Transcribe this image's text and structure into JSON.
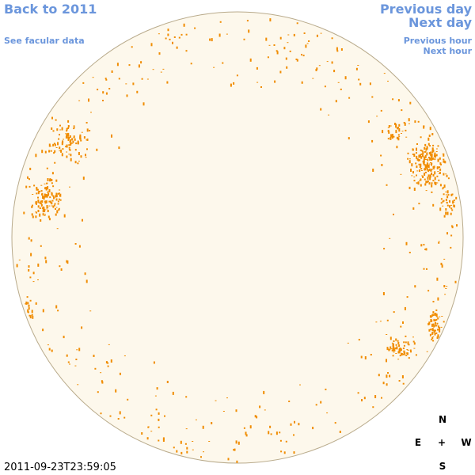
{
  "header": {
    "back_link": "Back to 2011",
    "facular_link": "See facular data",
    "previous_day": "Previous day",
    "next_day": "Next day",
    "previous_hour": "Previous hour",
    "next_hour": "Next hour"
  },
  "timestamp": "2011-09-23T23:59:05",
  "compass": {
    "north": "N",
    "east": "E",
    "center": "+",
    "west": "W",
    "south": "S"
  }
}
